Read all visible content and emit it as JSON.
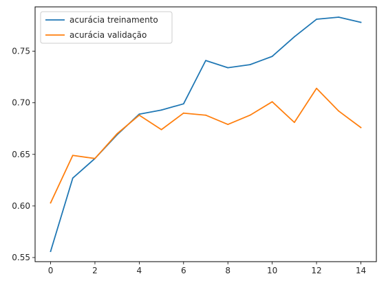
{
  "chart_data": {
    "type": "line",
    "title": "",
    "xlabel": "",
    "ylabel": "",
    "x": [
      0,
      1,
      2,
      3,
      4,
      5,
      6,
      7,
      8,
      9,
      10,
      11,
      12,
      13,
      14
    ],
    "xticks": [
      0,
      2,
      4,
      6,
      8,
      10,
      12,
      14
    ],
    "yticks": [
      0.55,
      0.6,
      0.65,
      0.7,
      0.75
    ],
    "ytick_labels": [
      "0.55",
      "0.60",
      "0.65",
      "0.70",
      "0.75"
    ],
    "xlim": [
      -0.7,
      14.7
    ],
    "ylim": [
      0.546,
      0.793
    ],
    "grid": false,
    "legend_position": "top-left",
    "series": [
      {
        "name": "acurácia treinamento",
        "color": "#1f77b4",
        "values": [
          0.556,
          0.627,
          0.646,
          0.669,
          0.689,
          0.693,
          0.699,
          0.741,
          0.734,
          0.737,
          0.745,
          0.764,
          0.781,
          0.783,
          0.778
        ]
      },
      {
        "name": "acurácia validação",
        "color": "#ff7f0e",
        "values": [
          0.603,
          0.649,
          0.646,
          0.67,
          0.688,
          0.674,
          0.69,
          0.688,
          0.679,
          0.688,
          0.701,
          0.681,
          0.714,
          0.692,
          0.676
        ]
      }
    ]
  }
}
